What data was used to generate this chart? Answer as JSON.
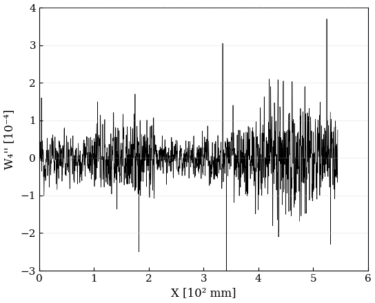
{
  "xlabel": "X [10² mm]",
  "ylabel": "W₄'' [10⁻⁴]",
  "xlim": [
    0,
    6
  ],
  "ylim": [
    -3,
    4
  ],
  "yticks": [
    -3,
    -2,
    -1,
    0,
    1,
    2,
    3,
    4
  ],
  "xticks": [
    0,
    1,
    2,
    3,
    4,
    5,
    6
  ],
  "line_color": "#000000",
  "line_width": 0.5,
  "background_color": "#ffffff",
  "grid_color": "#bbbbbb",
  "seed": 12345,
  "n_points": 2000,
  "x_start": 0.0,
  "x_end": 5.45,
  "figsize": [
    5.44,
    4.4
  ],
  "dpi": 100
}
